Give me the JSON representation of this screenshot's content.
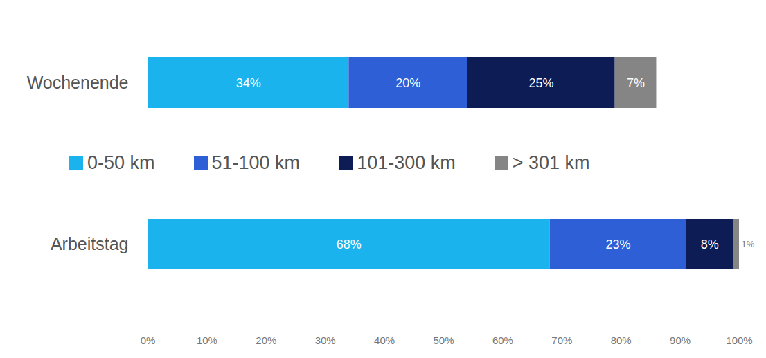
{
  "chart_data": {
    "type": "bar",
    "orientation": "horizontal",
    "stacked": true,
    "data_labels": true,
    "legend": "center",
    "categories": [
      "Wochenende",
      "Arbeitstag"
    ],
    "series": [
      {
        "name": "0-50 km",
        "color": "#1ab3ed",
        "values": [
          34,
          68
        ],
        "value_labels": [
          "34%",
          "68%"
        ]
      },
      {
        "name": "51-100 km",
        "color": "#2f5fd6",
        "values": [
          20,
          23
        ],
        "value_labels": [
          "20%",
          "23%"
        ]
      },
      {
        "name": "101-300 km",
        "color": "#0e1c56",
        "values": [
          25,
          8
        ],
        "value_labels": [
          "25%",
          "8%"
        ]
      },
      {
        "name": "> 301 km",
        "color": "#858585",
        "values": [
          7,
          1
        ],
        "value_labels": [
          "7%",
          "1%"
        ]
      }
    ],
    "xlim": [
      0,
      100
    ],
    "xticks": [
      {
        "value": 0,
        "label": "0%"
      },
      {
        "value": 10,
        "label": "10%"
      },
      {
        "value": 20,
        "label": "20%"
      },
      {
        "value": 30,
        "label": "30%"
      },
      {
        "value": 40,
        "label": "40%"
      },
      {
        "value": 50,
        "label": "50%"
      },
      {
        "value": 60,
        "label": "60%"
      },
      {
        "value": 70,
        "label": "70%"
      },
      {
        "value": 80,
        "label": "80%"
      },
      {
        "value": 90,
        "label": "90%"
      },
      {
        "value": 100,
        "label": "100%"
      }
    ]
  }
}
